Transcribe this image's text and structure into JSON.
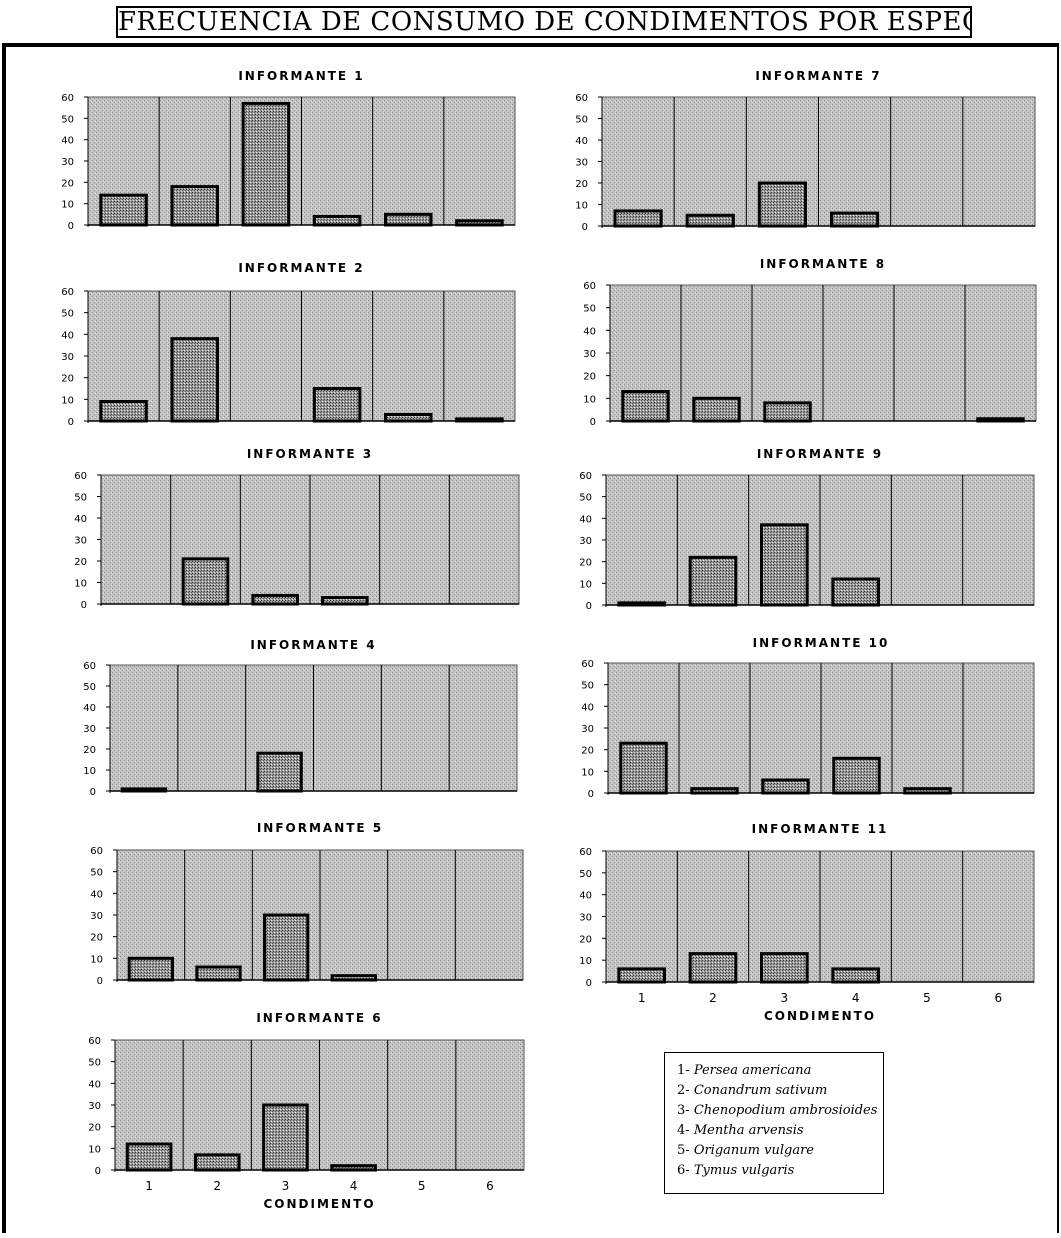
{
  "title": "FRECUENCIA DE CONSUMO DE CONDIMENTOS POR ESPECIE",
  "chart_data": [
    {
      "type": "bar",
      "title": "INFORMANTE 1",
      "categories": [
        "1",
        "2",
        "3",
        "4",
        "5",
        "6"
      ],
      "values": [
        14,
        18,
        57,
        4,
        5,
        2
      ],
      "ylim": [
        0,
        60
      ],
      "yticks": [
        "0",
        "10",
        "20",
        "30",
        "40",
        "50",
        "60"
      ],
      "xlabel": "",
      "grid": true
    },
    {
      "type": "bar",
      "title": "INFORMANTE 2",
      "categories": [
        "1",
        "2",
        "3",
        "4",
        "5",
        "6"
      ],
      "values": [
        9,
        38,
        0,
        15,
        3,
        1
      ],
      "ylim": [
        0,
        60
      ],
      "yticks": [
        "0",
        "10",
        "20",
        "30",
        "40",
        "50",
        "60"
      ],
      "xlabel": "",
      "grid": true
    },
    {
      "type": "bar",
      "title": "INFORMANTE 3",
      "categories": [
        "1",
        "2",
        "3",
        "4",
        "5",
        "6"
      ],
      "values": [
        0,
        21,
        4,
        3,
        0,
        0
      ],
      "ylim": [
        0,
        60
      ],
      "yticks": [
        "0",
        "10",
        "20",
        "30",
        "40",
        "50",
        "60"
      ],
      "xlabel": "",
      "grid": true
    },
    {
      "type": "bar",
      "title": "INFORMANTE 4",
      "categories": [
        "1",
        "2",
        "3",
        "4",
        "5",
        "6"
      ],
      "values": [
        1,
        0,
        18,
        0,
        0,
        0
      ],
      "ylim": [
        0,
        60
      ],
      "yticks": [
        "0",
        "10",
        "20",
        "30",
        "40",
        "50",
        "60"
      ],
      "xlabel": "",
      "grid": true
    },
    {
      "type": "bar",
      "title": "INFORMANTE 5",
      "categories": [
        "1",
        "2",
        "3",
        "4",
        "5",
        "6"
      ],
      "values": [
        10,
        6,
        30,
        2,
        0,
        0
      ],
      "ylim": [
        0,
        60
      ],
      "yticks": [
        "0",
        "10",
        "20",
        "30",
        "40",
        "50",
        "60"
      ],
      "xlabel": "",
      "grid": true
    },
    {
      "type": "bar",
      "title": "INFORMANTE 6",
      "categories": [
        "1",
        "2",
        "3",
        "4",
        "5",
        "6"
      ],
      "values": [
        12,
        7,
        30,
        2,
        0,
        0
      ],
      "ylim": [
        0,
        60
      ],
      "yticks": [
        "0",
        "10",
        "20",
        "30",
        "40",
        "50",
        "60"
      ],
      "xlabel": "CONDIMENTO",
      "show_categories": true,
      "grid": true
    },
    {
      "type": "bar",
      "title": "INFORMANTE 7",
      "categories": [
        "1",
        "2",
        "3",
        "4",
        "5",
        "6"
      ],
      "values": [
        7,
        5,
        20,
        6,
        0,
        0
      ],
      "ylim": [
        0,
        60
      ],
      "yticks": [
        "0",
        "10",
        "20",
        "30",
        "40",
        "50",
        "60"
      ],
      "xlabel": "",
      "grid": true
    },
    {
      "type": "bar",
      "title": "INFORMANTE 8",
      "categories": [
        "1",
        "2",
        "3",
        "4",
        "5",
        "6"
      ],
      "values": [
        13,
        10,
        8,
        0,
        0,
        1
      ],
      "ylim": [
        0,
        60
      ],
      "yticks": [
        "0",
        "10",
        "20",
        "30",
        "40",
        "50",
        "60"
      ],
      "xlabel": "",
      "grid": true
    },
    {
      "type": "bar",
      "title": "INFORMANTE 9",
      "categories": [
        "1",
        "2",
        "3",
        "4",
        "5",
        "6"
      ],
      "values": [
        1,
        22,
        37,
        12,
        0,
        0
      ],
      "ylim": [
        0,
        60
      ],
      "yticks": [
        "0",
        "10",
        "20",
        "30",
        "40",
        "50",
        "60"
      ],
      "xlabel": "",
      "grid": true
    },
    {
      "type": "bar",
      "title": "INFORMANTE 10",
      "categories": [
        "1",
        "2",
        "3",
        "4",
        "5",
        "6"
      ],
      "values": [
        23,
        2,
        6,
        16,
        2,
        0
      ],
      "ylim": [
        0,
        60
      ],
      "yticks": [
        "0",
        "10",
        "20",
        "30",
        "40",
        "50",
        "60"
      ],
      "xlabel": "",
      "grid": true
    },
    {
      "type": "bar",
      "title": "INFORMANTE 11",
      "categories": [
        "1",
        "2",
        "3",
        "4",
        "5",
        "6"
      ],
      "values": [
        6,
        13,
        13,
        6,
        0,
        0
      ],
      "ylim": [
        0,
        60
      ],
      "yticks": [
        "0",
        "10",
        "20",
        "30",
        "40",
        "50",
        "60"
      ],
      "xlabel": "CONDIMENTO",
      "show_categories": true,
      "grid": true
    }
  ],
  "legend": [
    {
      "num": "1-",
      "name": "Persea americana"
    },
    {
      "num": "2-",
      "name": "Conandrum sativum"
    },
    {
      "num": "3-",
      "name": "Chenopodium ambrosioides"
    },
    {
      "num": "4-",
      "name": "Mentha arvensis"
    },
    {
      "num": "5-",
      "name": "Origanum vulgare"
    },
    {
      "num": "6-",
      "name": "Tymus vulgaris"
    }
  ],
  "colors": {
    "plot_background": "#b9b9b9",
    "bar_fill": "#8c8c8c",
    "bar_edge": "#000000",
    "grid": "#000000"
  }
}
